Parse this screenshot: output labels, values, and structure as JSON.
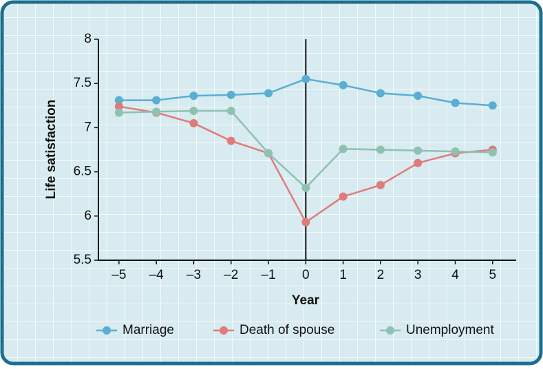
{
  "chart_data": {
    "type": "line",
    "x": [
      -5,
      -4,
      -3,
      -2,
      -1,
      0,
      1,
      2,
      3,
      4,
      5
    ],
    "series": [
      {
        "name": "Marriage",
        "color": "#5aaed2",
        "values": [
          7.31,
          7.31,
          7.36,
          7.37,
          7.39,
          7.55,
          7.48,
          7.39,
          7.36,
          7.28,
          7.25
        ]
      },
      {
        "name": "Death of spouse",
        "color": "#e07b7b",
        "values": [
          7.24,
          7.17,
          7.05,
          6.85,
          6.71,
          5.93,
          6.22,
          6.35,
          6.6,
          6.71,
          6.75
        ]
      },
      {
        "name": "Unemployment",
        "color": "#8fc1b1",
        "values": [
          7.17,
          7.18,
          7.19,
          7.19,
          6.71,
          6.32,
          6.76,
          6.75,
          6.74,
          6.73,
          6.72
        ]
      }
    ],
    "xlabel": "Year",
    "ylabel": "Life satisfaction",
    "xlim": [
      -5.55,
      5.63
    ],
    "ylim": [
      5.5,
      8
    ],
    "xticks": [
      {
        "value": -5,
        "label": "–5"
      },
      {
        "value": -4,
        "label": "–4"
      },
      {
        "value": -3,
        "label": "–3"
      },
      {
        "value": -2,
        "label": "–2"
      },
      {
        "value": -1,
        "label": "–1"
      },
      0,
      1,
      2,
      3,
      4,
      5
    ],
    "yticks": [
      5.5,
      6,
      6.5,
      7,
      7.5,
      8
    ],
    "vline_x": 0,
    "legend": "bottom"
  }
}
